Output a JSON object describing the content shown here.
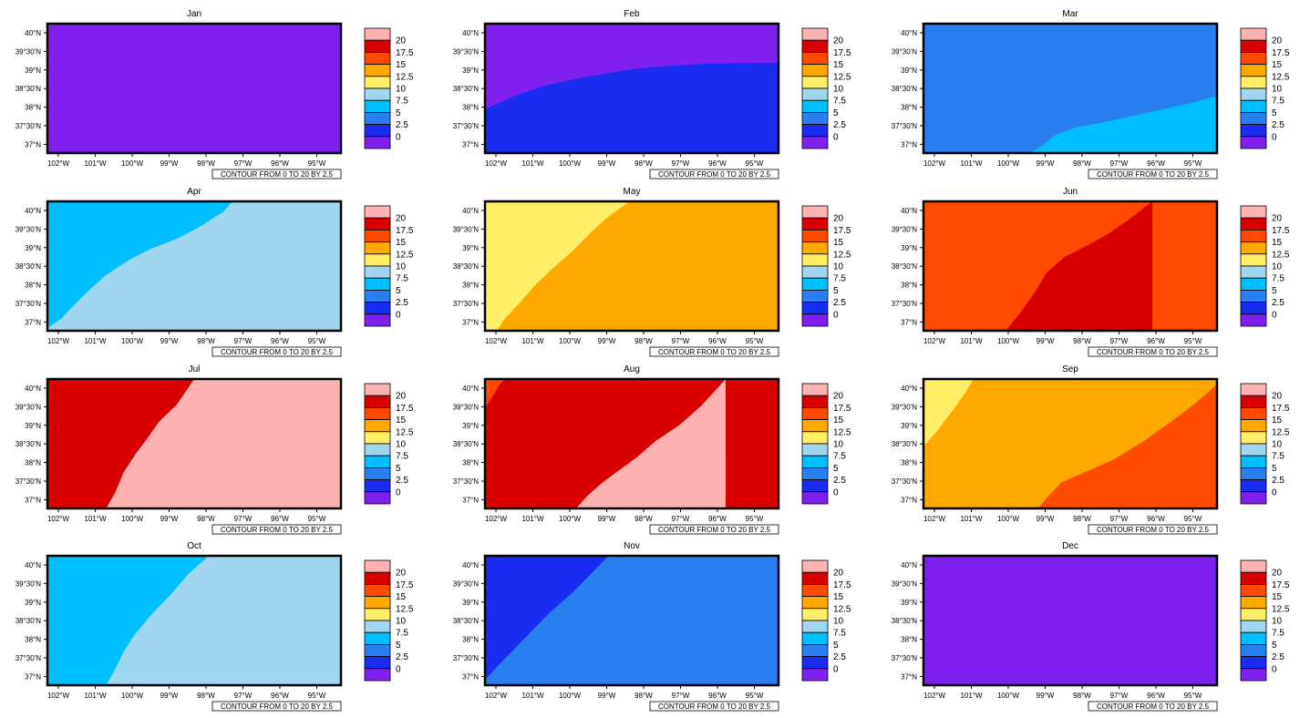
{
  "chart_data": {
    "type": "contour-map-grid",
    "contour_note": "CONTOUR FROM 0 TO 20 BY 2.5",
    "lat_ticks": [
      "40°N",
      "39°30'N",
      "39°N",
      "38°30'N",
      "38°N",
      "37°30'N",
      "37°N"
    ],
    "lon_ticks": [
      "102°W",
      "101°W",
      "100°W",
      "99°W",
      "98°W",
      "97°W",
      "96°W",
      "95°W"
    ],
    "legend": {
      "labels": [
        "20",
        "17.5",
        "15",
        "12.5",
        "10",
        "7.5",
        "5",
        "2.5",
        "0"
      ],
      "colors": [
        "#ffb2b2",
        "#d90000",
        "#ff4a00",
        "#ffa800",
        "#ffee66",
        "#a0d6f0",
        "#00bfff",
        "#2a7ff0",
        "#1a2cf0",
        "#8020ee"
      ]
    },
    "panels": [
      {
        "title": "Jan",
        "base": "#8020ee",
        "regions": []
      },
      {
        "title": "Feb",
        "base": "#8020ee",
        "regions": [
          {
            "color": "#1a2cf0",
            "boundary": [
              [
                0,
                0.66
              ],
              [
                0.1,
                0.56
              ],
              [
                0.2,
                0.48
              ],
              [
                0.3,
                0.43
              ],
              [
                0.4,
                0.39
              ],
              [
                0.5,
                0.35
              ],
              [
                0.6,
                0.33
              ],
              [
                0.75,
                0.31
              ],
              [
                1,
                0.3
              ]
            ],
            "side": "below"
          }
        ]
      },
      {
        "title": "Mar",
        "base": "#2a7ff0",
        "regions": [
          {
            "color": "#00bfff",
            "boundary": [
              [
                0.36,
                1
              ],
              [
                0.4,
                0.95
              ],
              [
                0.45,
                0.86
              ],
              [
                0.52,
                0.8
              ],
              [
                0.6,
                0.77
              ],
              [
                0.7,
                0.72
              ],
              [
                0.8,
                0.67
              ],
              [
                0.9,
                0.62
              ],
              [
                1,
                0.56
              ]
            ],
            "side": "below"
          }
        ]
      },
      {
        "title": "Apr",
        "base": "#a0d6f0",
        "regions": [
          {
            "color": "#00bfff",
            "boundary": [
              [
                0,
                0.98
              ],
              [
                0.05,
                0.9
              ],
              [
                0.1,
                0.78
              ],
              [
                0.15,
                0.67
              ],
              [
                0.2,
                0.57
              ],
              [
                0.28,
                0.45
              ],
              [
                0.35,
                0.37
              ],
              [
                0.45,
                0.28
              ],
              [
                0.53,
                0.18
              ],
              [
                0.6,
                0.08
              ],
              [
                0.63,
                0
              ]
            ],
            "side": "above"
          }
        ]
      },
      {
        "title": "May",
        "base": "#ffa800",
        "regions": [
          {
            "color": "#ffee66",
            "boundary": [
              [
                0.04,
                1
              ],
              [
                0.07,
                0.9
              ],
              [
                0.12,
                0.78
              ],
              [
                0.17,
                0.65
              ],
              [
                0.23,
                0.52
              ],
              [
                0.3,
                0.38
              ],
              [
                0.36,
                0.24
              ],
              [
                0.42,
                0.12
              ],
              [
                0.48,
                0.02
              ],
              [
                0.5,
                0
              ]
            ],
            "side": "above"
          }
        ]
      },
      {
        "title": "Jun",
        "base": "#ff4a00",
        "regions": [
          {
            "color": "#d90000",
            "boundary": [
              [
                0.28,
                1
              ],
              [
                0.33,
                0.86
              ],
              [
                0.38,
                0.7
              ],
              [
                0.42,
                0.55
              ],
              [
                0.48,
                0.43
              ],
              [
                0.55,
                0.35
              ],
              [
                0.63,
                0.25
              ],
              [
                0.7,
                0.14
              ],
              [
                0.78,
                0
              ]
            ],
            "side": "below"
          }
        ]
      },
      {
        "title": "Jul",
        "base": "#ffb2b2",
        "regions": [
          {
            "color": "#d90000",
            "boundary": [
              [
                0.2,
                1
              ],
              [
                0.23,
                0.88
              ],
              [
                0.26,
                0.72
              ],
              [
                0.3,
                0.58
              ],
              [
                0.34,
                0.46
              ],
              [
                0.38,
                0.33
              ],
              [
                0.44,
                0.2
              ],
              [
                0.5,
                0
              ]
            ],
            "side": "above"
          }
        ]
      },
      {
        "title": "Aug",
        "base": "#d90000",
        "regions": [
          {
            "color": "#ff4a00",
            "boundary": [
              [
                0,
                0.22
              ],
              [
                0.03,
                0.12
              ],
              [
                0.05,
                0.04
              ],
              [
                0.07,
                0
              ]
            ],
            "side": "above"
          },
          {
            "color": "#ffb2b2",
            "boundary": [
              [
                0.31,
                1
              ],
              [
                0.35,
                0.9
              ],
              [
                0.4,
                0.8
              ],
              [
                0.46,
                0.7
              ],
              [
                0.52,
                0.6
              ],
              [
                0.58,
                0.48
              ],
              [
                0.66,
                0.36
              ],
              [
                0.74,
                0.2
              ],
              [
                0.82,
                0
              ]
            ],
            "side": "below"
          }
        ]
      },
      {
        "title": "Sep",
        "base": "#ffa800",
        "regions": [
          {
            "color": "#ffee66",
            "boundary": [
              [
                0,
                0.52
              ],
              [
                0.04,
                0.42
              ],
              [
                0.08,
                0.3
              ],
              [
                0.12,
                0.18
              ],
              [
                0.15,
                0.08
              ],
              [
                0.17,
                0
              ]
            ],
            "side": "above"
          },
          {
            "color": "#ff4a00",
            "boundary": [
              [
                0.39,
                1
              ],
              [
                0.42,
                0.92
              ],
              [
                0.47,
                0.8
              ],
              [
                0.55,
                0.72
              ],
              [
                0.65,
                0.62
              ],
              [
                0.75,
                0.48
              ],
              [
                0.85,
                0.32
              ],
              [
                0.93,
                0.18
              ],
              [
                1,
                0.04
              ]
            ],
            "side": "below"
          }
        ]
      },
      {
        "title": "Oct",
        "base": "#a0d6f0",
        "regions": [
          {
            "color": "#00bfff",
            "boundary": [
              [
                0.2,
                1
              ],
              [
                0.23,
                0.88
              ],
              [
                0.26,
                0.74
              ],
              [
                0.3,
                0.6
              ],
              [
                0.36,
                0.44
              ],
              [
                0.42,
                0.3
              ],
              [
                0.48,
                0.14
              ],
              [
                0.55,
                0
              ]
            ],
            "side": "above"
          }
        ]
      },
      {
        "title": "Nov",
        "base": "#2a7ff0",
        "regions": [
          {
            "color": "#1a2cf0",
            "boundary": [
              [
                0,
                0.96
              ],
              [
                0.04,
                0.86
              ],
              [
                0.1,
                0.72
              ],
              [
                0.16,
                0.58
              ],
              [
                0.22,
                0.44
              ],
              [
                0.3,
                0.28
              ],
              [
                0.37,
                0.12
              ],
              [
                0.42,
                0
              ]
            ],
            "side": "above"
          }
        ]
      },
      {
        "title": "Dec",
        "base": "#8020ee",
        "regions": []
      }
    ]
  }
}
